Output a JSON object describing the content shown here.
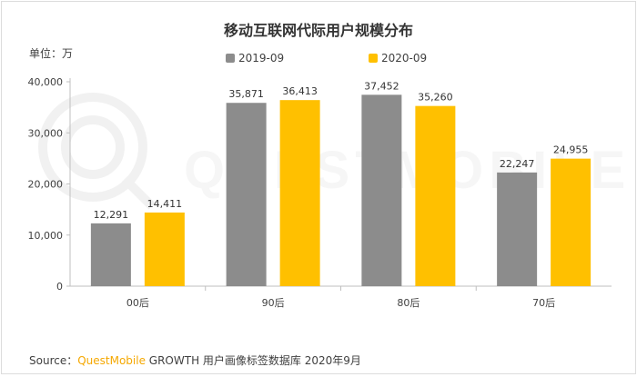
{
  "chart_data": {
    "type": "bar",
    "title": "移动互联网代际用户规模分布",
    "unit_label": "单位：万",
    "categories": [
      "00后",
      "90后",
      "80后",
      "70后"
    ],
    "series": [
      {
        "name": "2019-09",
        "values": [
          12291,
          35871,
          37452,
          22247
        ],
        "labels": [
          "12,291",
          "35,871",
          "37,452",
          "22,247"
        ],
        "color": "#8c8c8c"
      },
      {
        "name": "2020-09",
        "values": [
          14411,
          36413,
          35260,
          24955
        ],
        "labels": [
          "14,411",
          "36,413",
          "35,260",
          "24,955"
        ],
        "color": "#ffc000"
      }
    ],
    "yticks": [
      "0",
      "10,000",
      "20,000",
      "30,000",
      "40,000"
    ],
    "ylim": [
      0,
      40000
    ],
    "grid": false,
    "legend_position": "top-center"
  },
  "source": {
    "prefix": "Source：",
    "brand": "QuestMobile",
    "rest": " GROWTH 用户画像标签数据库 2020年9月"
  },
  "watermark_text": "QUESTMOBILE"
}
